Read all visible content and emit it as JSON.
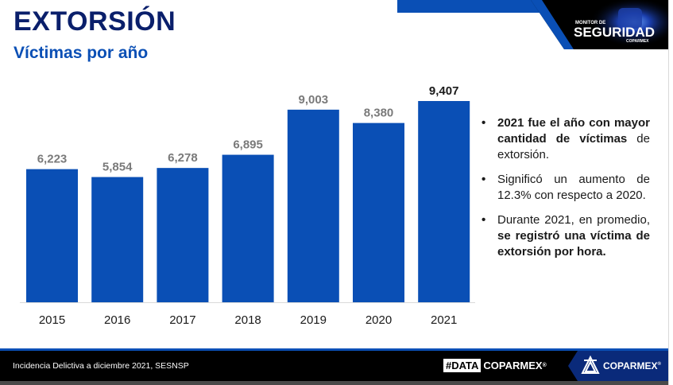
{
  "header": {
    "title": "EXTORSIÓN",
    "subtitle": "Víctimas por año"
  },
  "logo": {
    "small_text": "MONITOR DE",
    "big_text": "SEGURIDAD",
    "brand_text": "COPARMEX"
  },
  "chart_data": {
    "type": "bar",
    "title": "Víctimas por año",
    "xlabel": "",
    "ylabel": "",
    "categories": [
      "2015",
      "2016",
      "2017",
      "2018",
      "2019",
      "2020",
      "2021"
    ],
    "values": [
      6223,
      5854,
      6278,
      6895,
      9003,
      8380,
      9407
    ],
    "value_labels": [
      "6,223",
      "5,854",
      "6,278",
      "6,895",
      "9,003",
      "8,380",
      "9,407"
    ],
    "highlight_index": 6,
    "ylim": [
      0,
      9407
    ],
    "grid": false,
    "bar_color": "#0a4fb5",
    "label_color": "#7a7a7a",
    "highlight_label_color": "#1a1a1a"
  },
  "bullets": [
    {
      "bold": "2021 fue el año con mayor cantidad de víctimas",
      "normal": " de extorsión."
    },
    {
      "normal": "Significó un aumento de 12.3% con respecto a 2020."
    },
    {
      "normal": "Durante 2021, en promedio, ",
      "bold": "se registró una víctima de extorsión por hora."
    }
  ],
  "footer": {
    "source": "Incidencia Delictiva a diciembre 2021, SESNSP",
    "data_hash": "#DATA",
    "data_brand": "COPARMEX",
    "reg": "®",
    "brand": "COPARMEX"
  },
  "colors": {
    "navy": "#0a1f6b",
    "blue": "#0a4fb5"
  }
}
